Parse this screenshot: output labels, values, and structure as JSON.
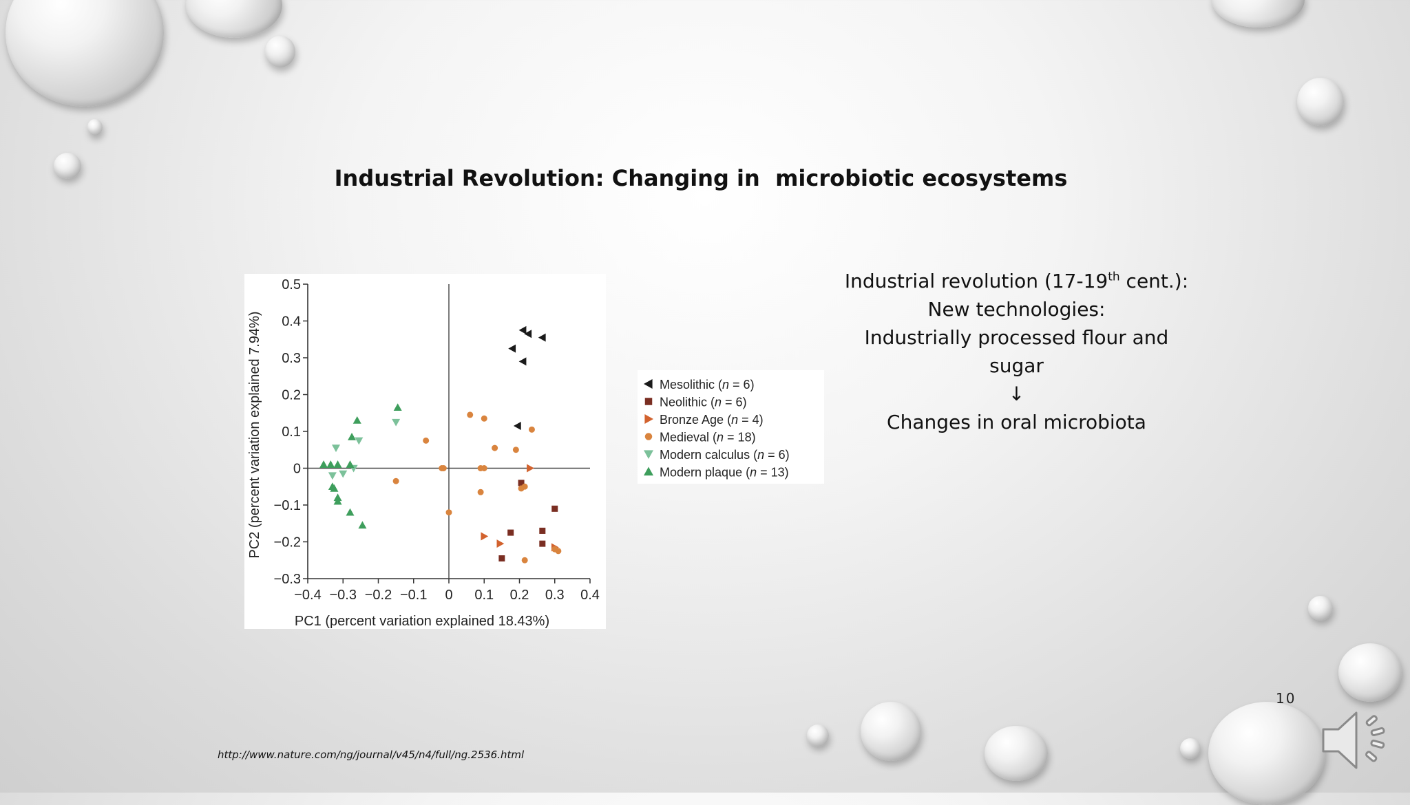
{
  "slide": {
    "title": "Industrial Revolution: Changing in  microbiotic ecosystems",
    "text": {
      "line1_pre": "Industrial revolution (17-19",
      "line1_sup": "th",
      "line1_post": " cent.):",
      "line2": "New technologies:",
      "line3": "Industrially processed flour and",
      "line4": "sugar",
      "arrow": "↓",
      "line5": "Changes in oral microbiota"
    },
    "source_url": "http://www.nature.com/ng/journal/v45/n4/full/ng.2536.html",
    "page_number": "10",
    "icons": {
      "audio": "speaker-icon"
    }
  },
  "chart_data": {
    "type": "scatter",
    "xlabel": "PC1 (percent variation explained 18.43%)",
    "ylabel": "PC2 (percent variation explained 7.94%)",
    "xlim": [
      -0.4,
      0.4
    ],
    "ylim": [
      -0.3,
      0.5
    ],
    "xticks": [
      -0.4,
      -0.3,
      -0.2,
      -0.1,
      0,
      0.1,
      0.2,
      0.3,
      0.4
    ],
    "xtick_labels": [
      "−0.4",
      "−0.3",
      "−0.2",
      "−0.1",
      "0",
      "0.1",
      "0.2",
      "0.3",
      "0.4"
    ],
    "yticks": [
      0.5,
      0.4,
      0.3,
      0.2,
      0.1,
      0,
      -0.1,
      -0.2,
      -0.3
    ],
    "ytick_labels": [
      "0.5",
      "0.4",
      "0.3",
      "0.2",
      "0.1",
      "0",
      "−0.1",
      "−0.2",
      "−0.3"
    ],
    "grid": false,
    "legend_position": "right",
    "series": [
      {
        "name": "Mesolithic",
        "n_label": "(n = 6)",
        "marker": "triangle-left",
        "color": "#1a1a1a",
        "points": [
          [
            0.21,
            0.375
          ],
          [
            0.225,
            0.365
          ],
          [
            0.265,
            0.355
          ],
          [
            0.18,
            0.325
          ],
          [
            0.21,
            0.29
          ],
          [
            0.195,
            0.115
          ]
        ]
      },
      {
        "name": "Neolithic",
        "n_label": "(n = 6)",
        "marker": "square",
        "color": "#7a2e22",
        "points": [
          [
            0.205,
            -0.04
          ],
          [
            0.3,
            -0.11
          ],
          [
            0.265,
            -0.17
          ],
          [
            0.175,
            -0.175
          ],
          [
            0.265,
            -0.205
          ],
          [
            0.15,
            -0.245
          ]
        ]
      },
      {
        "name": "Bronze Age",
        "n_label": "(n = 4)",
        "marker": "triangle-right",
        "color": "#d2622e",
        "points": [
          [
            0.23,
            0.0
          ],
          [
            0.1,
            -0.185
          ],
          [
            0.145,
            -0.205
          ],
          [
            0.3,
            -0.215
          ]
        ]
      },
      {
        "name": "Medieval",
        "n_label": "(n = 18)",
        "marker": "circle",
        "color": "#d9843e",
        "points": [
          [
            0.06,
            0.145
          ],
          [
            0.1,
            0.135
          ],
          [
            0.235,
            0.105
          ],
          [
            -0.065,
            0.075
          ],
          [
            0.13,
            0.055
          ],
          [
            0.19,
            0.05
          ],
          [
            0.1,
            0.0
          ],
          [
            -0.02,
            0.0
          ],
          [
            0.09,
            0.0
          ],
          [
            -0.015,
            0.0
          ],
          [
            -0.15,
            -0.035
          ],
          [
            0.215,
            -0.05
          ],
          [
            0.205,
            -0.055
          ],
          [
            0.09,
            -0.065
          ],
          [
            0.0,
            -0.12
          ],
          [
            0.31,
            -0.225
          ],
          [
            0.215,
            -0.25
          ],
          [
            0.3,
            -0.22
          ]
        ]
      },
      {
        "name": "Modern calculus",
        "n_label": "(n = 6)",
        "marker": "triangle-down",
        "color": "#7cc19a",
        "points": [
          [
            -0.32,
            0.055
          ],
          [
            -0.255,
            0.075
          ],
          [
            -0.15,
            0.125
          ],
          [
            -0.33,
            -0.02
          ],
          [
            -0.3,
            -0.015
          ],
          [
            -0.27,
            0.0
          ]
        ]
      },
      {
        "name": "Modern plaque",
        "n_label": "(n = 13)",
        "marker": "triangle-up",
        "color": "#3e9e5c",
        "points": [
          [
            -0.355,
            0.01
          ],
          [
            -0.335,
            0.01
          ],
          [
            -0.315,
            0.01
          ],
          [
            -0.275,
            0.085
          ],
          [
            -0.26,
            0.13
          ],
          [
            -0.145,
            0.165
          ],
          [
            -0.28,
            0.01
          ],
          [
            -0.33,
            -0.05
          ],
          [
            -0.325,
            -0.055
          ],
          [
            -0.315,
            -0.08
          ],
          [
            -0.315,
            -0.09
          ],
          [
            -0.28,
            -0.12
          ],
          [
            -0.245,
            -0.155
          ]
        ]
      }
    ]
  }
}
